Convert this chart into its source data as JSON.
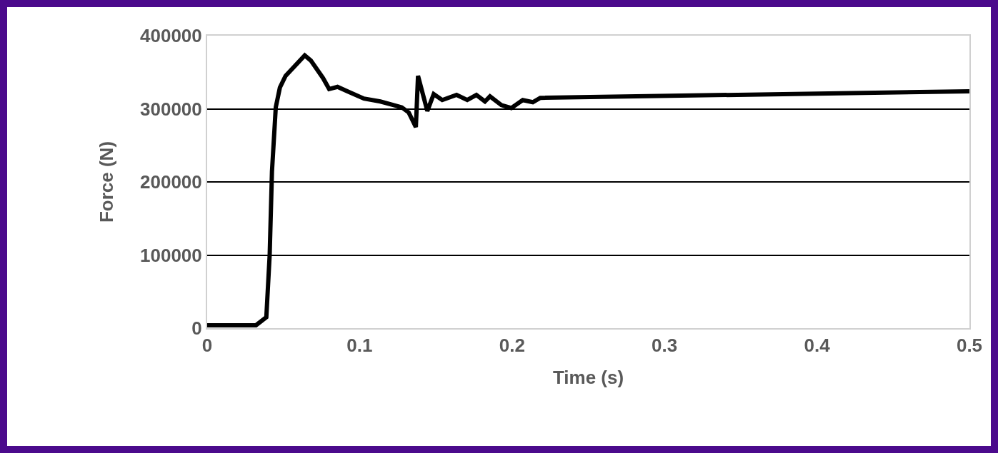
{
  "chart_data": {
    "type": "line",
    "xlabel": "Time (s)",
    "ylabel": "Force (N)",
    "x": [
      0,
      0.032,
      0.0388,
      0.041,
      0.0425,
      0.045,
      0.0477,
      0.0514,
      0.064,
      0.068,
      0.076,
      0.08,
      0.0855,
      0.092,
      0.1028,
      0.1136,
      0.1276,
      0.1322,
      0.1369,
      0.1383,
      0.1444,
      0.1486,
      0.1542,
      0.1636,
      0.1706,
      0.1766,
      0.1822,
      0.1855,
      0.193,
      0.1995,
      0.207,
      0.2136,
      0.2185,
      0.5
    ],
    "series": [
      {
        "color": "#000000",
        "values": [
          4000,
          4000,
          15000,
          100000,
          214000,
          302000,
          329000,
          345000,
          373000,
          366000,
          342000,
          327000,
          330000,
          324000,
          314000,
          310000,
          302000,
          295000,
          275000,
          345000,
          297000,
          320000,
          312000,
          319000,
          312000,
          319000,
          310000,
          317000,
          305000,
          301000,
          312000,
          309000,
          315000,
          324000
        ]
      }
    ],
    "xlim": [
      0,
      0.5
    ],
    "xticks": [
      0,
      0.1,
      0.2,
      0.3,
      0.4,
      0.5
    ],
    "ylim": [
      0,
      400000
    ],
    "yticks": [
      0,
      100000,
      200000,
      300000,
      400000
    ],
    "grid": "y",
    "marker": "none",
    "line_style": "solid"
  }
}
